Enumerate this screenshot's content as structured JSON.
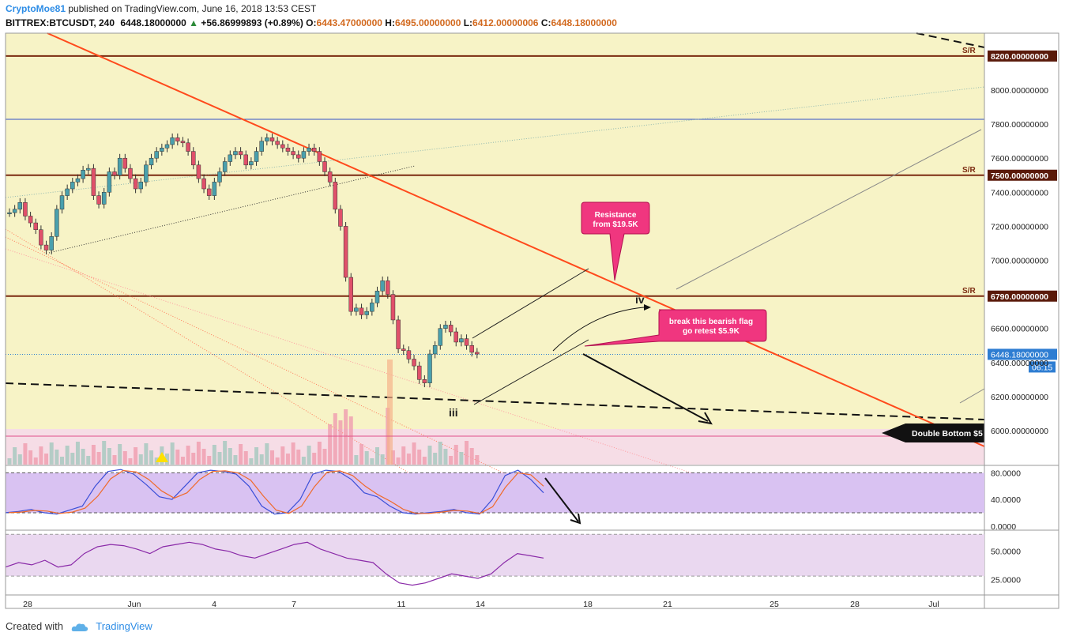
{
  "header": {
    "author": "CryptoMoe81",
    "published": "published on TradingView.com, June 16, 2018 13:53 CEST",
    "symbol": "BITTREX:BTCUSDT, 240",
    "last": "6448.18000000",
    "change": "+56.86999893 (+0.89%)",
    "o_label": "O:",
    "o_value": "6443.47000000",
    "h_label": "H:",
    "h_value": "6495.00000000",
    "l_label": "L:",
    "l_value": "6412.00000006",
    "c_label": "C:",
    "c_value": "6448.18000000"
  },
  "footer": {
    "created": "Created with",
    "brand": "TradingView"
  },
  "chart_data": [
    {
      "type": "candlestick",
      "ylim": [
        5900,
        8280
      ],
      "y_ticks": [
        "8000.00000000",
        "7800.00000000",
        "7600.00000000",
        "7400.00000000",
        "7200.00000000",
        "7000.00000000",
        "6600.00000000",
        "6400.00000000",
        "6200.00000000",
        "6000.00000000"
      ],
      "x_ticks": [
        "28",
        "Jun",
        "4",
        "7",
        "11",
        "14",
        "18",
        "21",
        "25",
        "28",
        "Jul"
      ],
      "price_levels": [
        {
          "label": "S/R",
          "value": 8200,
          "text": "8200.00000000"
        },
        {
          "label": "S/R",
          "value": 7500,
          "text": "7500.00000000"
        },
        {
          "label": "S/R",
          "value": 6790,
          "text": "6790.00000000"
        }
      ],
      "current_price": {
        "text": "6448.18000000",
        "countdown": "06:15"
      },
      "annotations": [
        {
          "text": "Resistance from $19.5K"
        },
        {
          "text": "break this bearish flag go retest $5.9K"
        },
        {
          "text": "Double Bottom $5"
        },
        {
          "text": "iv"
        },
        {
          "text": "iii"
        }
      ],
      "colors": {
        "bull": "#4aa0ad",
        "bear": "#e0506a",
        "trend": "#ff4a1c",
        "sr": "#7b2a10",
        "callout": "#f0367f",
        "bg": "#f7f3c6"
      }
    },
    {
      "type": "line",
      "name": "stochastic",
      "y_ticks": [
        "80.0000",
        "40.0000",
        "0.0000"
      ],
      "ylim": [
        -5,
        90
      ]
    },
    {
      "type": "line",
      "name": "rsi",
      "y_ticks": [
        "50.0000",
        "25.0000"
      ],
      "ylim": [
        12,
        68
      ]
    }
  ]
}
